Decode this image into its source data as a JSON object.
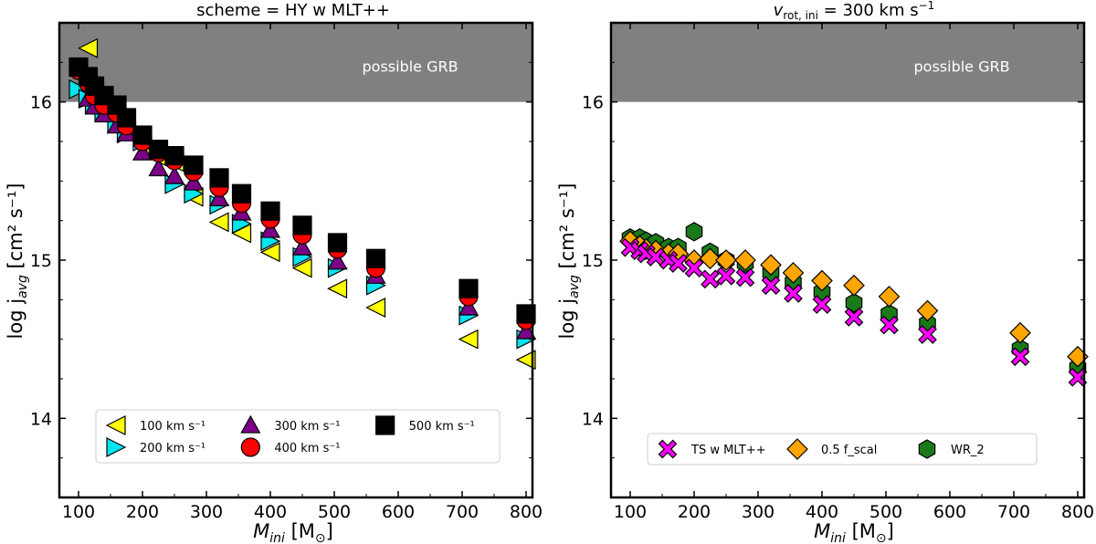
{
  "chart_data": [
    {
      "type": "scatter",
      "title": "scheme = HY w MLT++",
      "xlabel_main": "M",
      "xlabel_sub": "ini",
      "xlabel_unit": "[M",
      "xlabel_unit_sub": "⊙",
      "xlabel_unit_close": "]",
      "ylabel_main": "log j",
      "ylabel_sub": "avg",
      "ylabel_unit": "[cm² s⁻¹]",
      "xlim": [
        70,
        810
      ],
      "ylim": [
        13.5,
        16.5
      ],
      "xticks": [
        100,
        200,
        300,
        400,
        500,
        600,
        700,
        800
      ],
      "yticks": [
        14,
        15,
        16
      ],
      "grb_region": {
        "from": 16.0,
        "to": 16.5,
        "label": "possible GRB"
      },
      "legend": {
        "columns": 3
      },
      "series": [
        {
          "name": "100",
          "unit": "km s⁻¹",
          "marker": "triangle-left",
          "color": "#ffff00",
          "points": [
            [
              115,
              16.34
            ],
            [
              125,
              16.06
            ],
            [
              140,
              15.98
            ],
            [
              160,
              15.9
            ],
            [
              175,
              15.82
            ],
            [
              200,
              15.72
            ],
            [
              225,
              15.65
            ],
            [
              250,
              15.62
            ],
            [
              280,
              15.4
            ],
            [
              320,
              15.24
            ],
            [
              355,
              15.17
            ],
            [
              400,
              15.05
            ],
            [
              450,
              14.95
            ],
            [
              505,
              14.82
            ],
            [
              565,
              14.7
            ],
            [
              710,
              14.5
            ],
            [
              800,
              14.37
            ]
          ]
        },
        {
          "name": "200",
          "unit": "km s⁻¹",
          "marker": "triangle-right",
          "color": "#00e5ee",
          "points": [
            [
              100,
              16.08
            ],
            [
              115,
              16.02
            ],
            [
              125,
              15.99
            ],
            [
              140,
              15.94
            ],
            [
              160,
              15.86
            ],
            [
              175,
              15.8
            ],
            [
              200,
              15.75
            ],
            [
              225,
              15.7
            ],
            [
              250,
              15.48
            ],
            [
              280,
              15.42
            ],
            [
              320,
              15.35
            ],
            [
              355,
              15.23
            ],
            [
              400,
              15.12
            ],
            [
              450,
              15.02
            ],
            [
              505,
              14.95
            ],
            [
              565,
              14.84
            ],
            [
              710,
              14.65
            ],
            [
              800,
              14.5
            ]
          ]
        },
        {
          "name": "300",
          "unit": "km s⁻¹",
          "marker": "triangle-up",
          "color": "#7a0085",
          "points": [
            [
              115,
              16.02
            ],
            [
              125,
              15.97
            ],
            [
              140,
              15.92
            ],
            [
              160,
              15.85
            ],
            [
              175,
              15.8
            ],
            [
              200,
              15.68
            ],
            [
              225,
              15.58
            ],
            [
              250,
              15.53
            ],
            [
              280,
              15.49
            ],
            [
              320,
              15.39
            ],
            [
              355,
              15.3
            ],
            [
              400,
              15.19
            ],
            [
              450,
              15.08
            ],
            [
              505,
              14.99
            ],
            [
              565,
              14.9
            ],
            [
              710,
              14.7
            ],
            [
              800,
              14.55
            ]
          ]
        },
        {
          "name": "400",
          "unit": "km s⁻¹",
          "marker": "circle",
          "color": "#ff0000",
          "points": [
            [
              100,
              16.2
            ],
            [
              115,
              16.12
            ],
            [
              125,
              16.04
            ],
            [
              140,
              15.98
            ],
            [
              160,
              15.93
            ],
            [
              175,
              15.85
            ],
            [
              200,
              15.75
            ],
            [
              225,
              15.68
            ],
            [
              250,
              15.63
            ],
            [
              280,
              15.56
            ],
            [
              320,
              15.46
            ],
            [
              355,
              15.36
            ],
            [
              400,
              15.26
            ],
            [
              450,
              15.16
            ],
            [
              505,
              15.07
            ],
            [
              565,
              14.95
            ],
            [
              710,
              14.77
            ],
            [
              800,
              14.62
            ]
          ]
        },
        {
          "name": "500",
          "unit": "km s⁻¹",
          "marker": "square",
          "color": "#000000",
          "points": [
            [
              100,
              16.22
            ],
            [
              115,
              16.16
            ],
            [
              125,
              16.1
            ],
            [
              140,
              16.04
            ],
            [
              160,
              15.98
            ],
            [
              175,
              15.9
            ],
            [
              200,
              15.79
            ],
            [
              225,
              15.7
            ],
            [
              250,
              15.66
            ],
            [
              280,
              15.6
            ],
            [
              320,
              15.52
            ],
            [
              355,
              15.42
            ],
            [
              400,
              15.31
            ],
            [
              450,
              15.22
            ],
            [
              505,
              15.11
            ],
            [
              565,
              15.01
            ],
            [
              710,
              14.82
            ],
            [
              800,
              14.66
            ]
          ]
        }
      ]
    },
    {
      "type": "scatter",
      "title_prefix": "v",
      "title_sub": "rot, ini",
      "title_rest": " = 300 km s",
      "title_sup": "−1",
      "xlabel_main": "M",
      "xlabel_sub": "ini",
      "xlabel_unit": "[M",
      "xlabel_unit_sub": "⊙",
      "xlabel_unit_close": "]",
      "ylabel_main": "log j",
      "ylabel_sub": "avg",
      "ylabel_unit": "[cm² s⁻¹]",
      "xlim": [
        70,
        810
      ],
      "ylim": [
        13.5,
        16.5
      ],
      "xticks": [
        100,
        200,
        300,
        400,
        500,
        600,
        700,
        800
      ],
      "yticks": [
        14,
        15,
        16
      ],
      "grb_region": {
        "from": 16.0,
        "to": 16.5,
        "label": "possible GRB"
      },
      "legend": {
        "columns": 3
      },
      "series": [
        {
          "name": "WR_2",
          "unit": "",
          "marker": "hexagon",
          "color": "#1a7a1a",
          "points": [
            [
              100,
              15.14
            ],
            [
              115,
              15.14
            ],
            [
              125,
              15.12
            ],
            [
              140,
              15.11
            ],
            [
              160,
              15.08
            ],
            [
              175,
              15.08
            ],
            [
              200,
              15.18
            ],
            [
              225,
              15.05
            ],
            [
              250,
              15.0
            ],
            [
              280,
              14.98
            ],
            [
              320,
              14.92
            ],
            [
              355,
              14.86
            ],
            [
              400,
              14.8
            ],
            [
              450,
              14.73
            ],
            [
              505,
              14.66
            ],
            [
              565,
              14.6
            ],
            [
              710,
              14.44
            ],
            [
              800,
              14.32
            ]
          ]
        },
        {
          "name": "0.5 f_scal",
          "unit": "",
          "marker": "diamond",
          "color": "#ffa500",
          "points": [
            [
              100,
              15.12
            ],
            [
              115,
              15.09
            ],
            [
              125,
              15.07
            ],
            [
              140,
              15.06
            ],
            [
              160,
              15.04
            ],
            [
              175,
              15.04
            ],
            [
              200,
              15.0
            ],
            [
              225,
              15.01
            ],
            [
              250,
              15.0
            ],
            [
              280,
              15.0
            ],
            [
              320,
              14.97
            ],
            [
              355,
              14.92
            ],
            [
              400,
              14.87
            ],
            [
              450,
              14.84
            ],
            [
              505,
              14.77
            ],
            [
              565,
              14.68
            ],
            [
              710,
              14.54
            ],
            [
              800,
              14.39
            ]
          ]
        },
        {
          "name": "TS w MLT++",
          "unit": "",
          "marker": "x",
          "color": "#ff00ff",
          "points": [
            [
              100,
              15.08
            ],
            [
              115,
              15.06
            ],
            [
              125,
              15.04
            ],
            [
              140,
              15.02
            ],
            [
              160,
              15.0
            ],
            [
              175,
              14.98
            ],
            [
              200,
              14.95
            ],
            [
              225,
              14.88
            ],
            [
              250,
              14.9
            ],
            [
              280,
              14.89
            ],
            [
              320,
              14.84
            ],
            [
              355,
              14.79
            ],
            [
              400,
              14.72
            ],
            [
              450,
              14.64
            ],
            [
              505,
              14.59
            ],
            [
              565,
              14.53
            ],
            [
              710,
              14.39
            ],
            [
              800,
              14.26
            ]
          ]
        }
      ]
    }
  ]
}
